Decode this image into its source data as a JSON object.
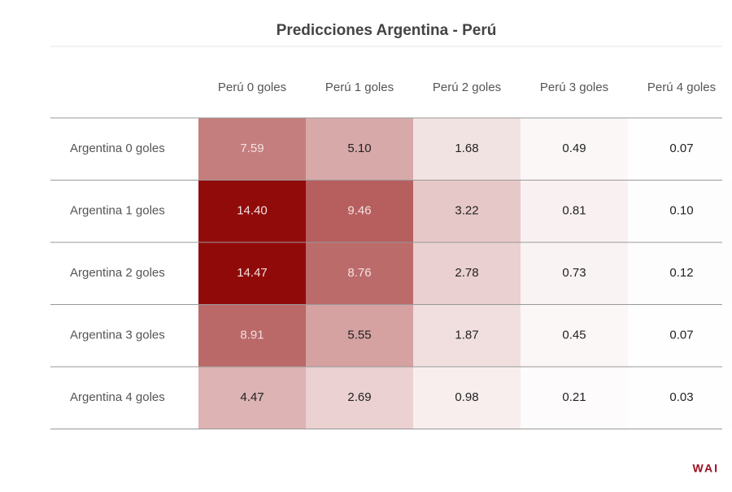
{
  "title": "Predicciones Argentina - Perú",
  "table": {
    "columns": [
      "Perú 0 goles",
      "Perú 1 goles",
      "Perú 2 goles",
      "Perú 3 goles",
      "Perú 4 goles"
    ],
    "row_labels": [
      "Argentina 0 goles",
      "Argentina 1 goles",
      "Argentina 2 goles",
      "Argentina 3 goles",
      "Argentina 4 goles"
    ],
    "rows": [
      [
        "7.59",
        "5.10",
        "1.68",
        "0.49",
        "0.07"
      ],
      [
        "14.40",
        "9.46",
        "3.22",
        "0.81",
        "0.10"
      ],
      [
        "14.47",
        "8.76",
        "2.78",
        "0.73",
        "0.12"
      ],
      [
        "8.91",
        "5.55",
        "1.87",
        "0.45",
        "0.07"
      ],
      [
        "4.47",
        "2.69",
        "0.98",
        "0.21",
        "0.03"
      ]
    ]
  },
  "logo": "WAI"
}
